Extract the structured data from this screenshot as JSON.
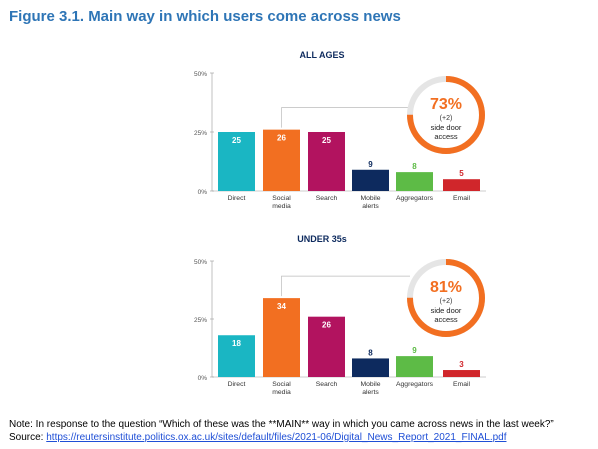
{
  "figure_title": "Figure 3.1. Main way in which users come across news",
  "note": "Note: In response to the question “Which of these was the **MAIN** way in which you came across news in the last week?”",
  "source_label": "Source:",
  "source_link": "https://reutersinstitute.politics.ox.ac.uk/sites/default/files/2021-06/Digital_News_Report_2021_FINAL.pdf",
  "colors": {
    "Direct": "#1ab6c3",
    "Social media": "#f26f21",
    "Search": "#b2135f",
    "Mobile alerts": "#0d2a5e",
    "Aggregators": "#5dbb46",
    "Email": "#d0262b",
    "accent": "#f26f21"
  },
  "chart_data": [
    {
      "type": "bar",
      "title": "ALL AGES",
      "categories": [
        "Direct",
        "Social media",
        "Search",
        "Mobile alerts",
        "Aggregators",
        "Email"
      ],
      "category_lines": [
        [
          "Direct"
        ],
        [
          "Social",
          "media"
        ],
        [
          "Search"
        ],
        [
          "Mobile",
          "alerts"
        ],
        [
          "Aggregators"
        ],
        [
          "Email"
        ]
      ],
      "values": [
        25,
        26,
        25,
        9,
        8,
        5
      ],
      "yticks": [
        "50%",
        "25%",
        "0%"
      ],
      "ylim": [
        0,
        50
      ],
      "callout": {
        "value": "73%",
        "change": "(+2)",
        "label": [
          "side door",
          "access"
        ]
      }
    },
    {
      "type": "bar",
      "title": "UNDER 35s",
      "categories": [
        "Direct",
        "Social media",
        "Search",
        "Mobile alerts",
        "Aggregators",
        "Email"
      ],
      "category_lines": [
        [
          "Direct"
        ],
        [
          "Social",
          "media"
        ],
        [
          "Search"
        ],
        [
          "Mobile",
          "alerts"
        ],
        [
          "Aggregators"
        ],
        [
          "Email"
        ]
      ],
      "values": [
        18,
        34,
        26,
        8,
        9,
        3
      ],
      "yticks": [
        "50%",
        "25%",
        "0%"
      ],
      "ylim": [
        0,
        50
      ],
      "callout": {
        "value": "81%",
        "change": "(+2)",
        "label": [
          "side door",
          "access"
        ]
      }
    }
  ]
}
